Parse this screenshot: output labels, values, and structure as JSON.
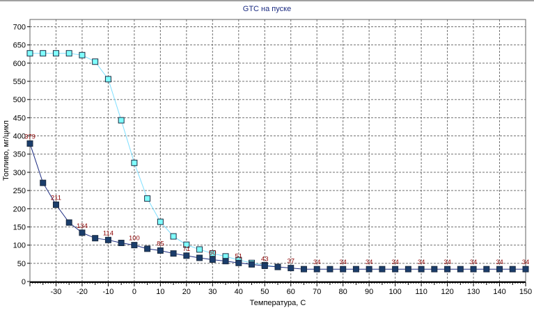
{
  "window": {
    "title": "GTC на пуске"
  },
  "chart_data": {
    "type": "line",
    "title": "GTC на пуске",
    "xlabel": "Температура, С",
    "ylabel": "Топливо, мг/цикл",
    "xlim": [
      -40,
      150
    ],
    "ylim": [
      0,
      720
    ],
    "xticks": [
      -30,
      -20,
      -10,
      0,
      10,
      20,
      30,
      40,
      50,
      60,
      70,
      80,
      90,
      100,
      110,
      120,
      130,
      140,
      150
    ],
    "yticks": [
      0,
      50,
      100,
      150,
      200,
      250,
      300,
      350,
      400,
      450,
      500,
      550,
      600,
      650,
      700
    ],
    "grid": true,
    "series": [
      {
        "color": "#7fffff",
        "line_color": "#7fdfff",
        "marker": "square",
        "x": [
          -40,
          -35,
          -30,
          -25,
          -20,
          -15,
          -10,
          -5,
          0,
          5,
          10,
          15,
          20,
          25,
          30,
          35,
          40,
          45,
          50,
          55
        ],
        "y": [
          627,
          627,
          627,
          627,
          622,
          604,
          556,
          443,
          326,
          228,
          164,
          124,
          101,
          88,
          77,
          69,
          59,
          51,
          45,
          40
        ]
      },
      {
        "color": "#1a3d6b",
        "line_color": "#1a2a80",
        "marker": "square",
        "x": [
          -40,
          -35,
          -30,
          -25,
          -20,
          -15,
          -10,
          -5,
          0,
          5,
          10,
          15,
          20,
          25,
          30,
          35,
          40,
          45,
          50,
          55,
          60,
          65,
          70,
          75,
          80,
          85,
          90,
          95,
          100,
          105,
          110,
          115,
          120,
          125,
          130,
          135,
          140,
          145,
          150
        ],
        "y": [
          379,
          271,
          211,
          162,
          134,
          119,
          114,
          106,
          100,
          90,
          85,
          77,
          71,
          65,
          60,
          56,
          51,
          47,
          43,
          40,
          37,
          34,
          34,
          34,
          34,
          34,
          34,
          34,
          34,
          34,
          34,
          34,
          34,
          34,
          34,
          34,
          34,
          34,
          34
        ]
      }
    ],
    "data_labels": [
      {
        "x": -40,
        "y": 379,
        "text": "379"
      },
      {
        "x": -30,
        "y": 211,
        "text": "211"
      },
      {
        "x": -20,
        "y": 134,
        "text": "134"
      },
      {
        "x": -10,
        "y": 114,
        "text": "114"
      },
      {
        "x": 0,
        "y": 100,
        "text": "100"
      },
      {
        "x": 10,
        "y": 85,
        "text": "85"
      },
      {
        "x": 20,
        "y": 71,
        "text": "71"
      },
      {
        "x": 30,
        "y": 60,
        "text": "60"
      },
      {
        "x": 40,
        "y": 51,
        "text": "51"
      },
      {
        "x": 50,
        "y": 43,
        "text": "43"
      },
      {
        "x": 60,
        "y": 37,
        "text": "37"
      },
      {
        "x": 70,
        "y": 34,
        "text": "34"
      },
      {
        "x": 80,
        "y": 34,
        "text": "34"
      },
      {
        "x": 90,
        "y": 34,
        "text": "34"
      },
      {
        "x": 100,
        "y": 34,
        "text": "34"
      },
      {
        "x": 110,
        "y": 34,
        "text": "34"
      },
      {
        "x": 120,
        "y": 34,
        "text": "34"
      },
      {
        "x": 130,
        "y": 34,
        "text": "34"
      },
      {
        "x": 140,
        "y": 34,
        "text": "34"
      },
      {
        "x": 150,
        "y": 34,
        "text": "34"
      }
    ]
  }
}
